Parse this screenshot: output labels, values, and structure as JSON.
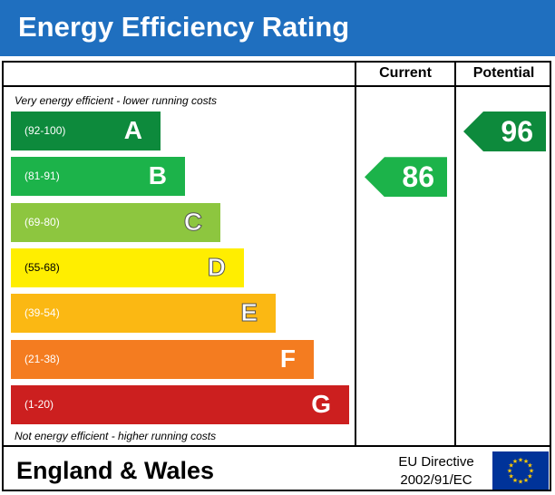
{
  "header": {
    "title": "Energy Efficiency Rating",
    "background": "#1f6fbf"
  },
  "columns": {
    "current": "Current",
    "potential": "Potential"
  },
  "captions": {
    "top": "Very energy efficient - lower running costs",
    "bottom": "Not energy efficient - higher running costs"
  },
  "chart_data": {
    "type": "bar",
    "title": "Energy Efficiency Rating",
    "categories": [
      "A",
      "B",
      "C",
      "D",
      "E",
      "F",
      "G"
    ],
    "bands": [
      {
        "letter": "A",
        "range": "(92-100)",
        "min": 92,
        "max": 100,
        "color": "#0d8a3c"
      },
      {
        "letter": "B",
        "range": "(81-91)",
        "min": 81,
        "max": 91,
        "color": "#1cb34a"
      },
      {
        "letter": "C",
        "range": "(69-80)",
        "min": 69,
        "max": 80,
        "color": "#8dc63f"
      },
      {
        "letter": "D",
        "range": "(55-68)",
        "min": 55,
        "max": 68,
        "color": "#ffee00"
      },
      {
        "letter": "E",
        "range": "(39-54)",
        "min": 39,
        "max": 54,
        "color": "#fbb813"
      },
      {
        "letter": "F",
        "range": "(21-38)",
        "min": 21,
        "max": 38,
        "color": "#f47c20"
      },
      {
        "letter": "G",
        "range": "(1-20)",
        "min": 1,
        "max": 20,
        "color": "#cc1f1f"
      }
    ],
    "current": {
      "value": 86,
      "band": "B",
      "color": "#1cb34a"
    },
    "potential": {
      "value": 96,
      "band": "A",
      "color": "#0d8a3c"
    }
  },
  "footer": {
    "region": "England & Wales",
    "directive_line1": "EU Directive",
    "directive_line2": "2002/91/EC",
    "flag_color": "#003399",
    "star_color": "#ffcc00"
  }
}
